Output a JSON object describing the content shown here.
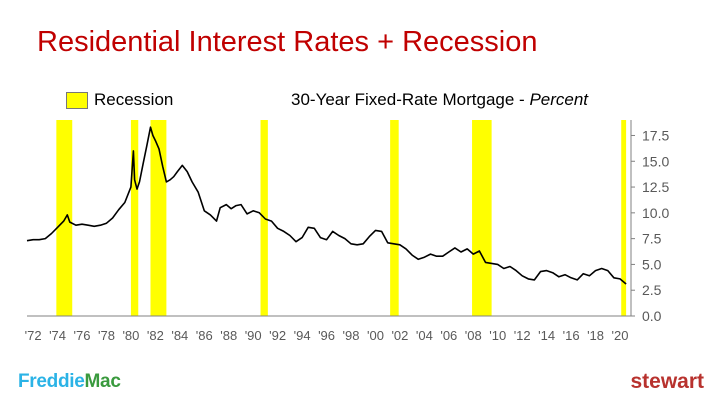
{
  "slide": {
    "title": "Residential Interest Rates + Recession"
  },
  "legend": {
    "label": "Recession",
    "color": "#ffff00"
  },
  "subtitle": {
    "main": "30-Year Fixed-Rate Mortgage - ",
    "italic": "Percent"
  },
  "brands": {
    "left_part1": "Freddie",
    "left_part2": "Mac",
    "right": "stewart"
  },
  "colors": {
    "title": "#c00000",
    "line": "#000000",
    "recession": "#ffff00"
  },
  "chart_data": {
    "type": "line",
    "xlim": [
      1971.5,
      2020.9
    ],
    "ylim": [
      0,
      19
    ],
    "x_ticks": [
      1972,
      1974,
      1976,
      1978,
      1980,
      1982,
      1984,
      1986,
      1988,
      1990,
      1992,
      1994,
      1996,
      1998,
      2000,
      2002,
      2004,
      2006,
      2008,
      2010,
      2012,
      2014,
      2016,
      2018,
      2020
    ],
    "x_tick_labels": [
      "'72",
      "'74",
      "'76",
      "'78",
      "'80",
      "'82",
      "'84",
      "'86",
      "'88",
      "'90",
      "'92",
      "'94",
      "'96",
      "'98",
      "'00",
      "'02",
      "'04",
      "'06",
      "'08",
      "'10",
      "'12",
      "'14",
      "'16",
      "'18",
      "'20"
    ],
    "y_ticks": [
      0,
      2.5,
      5,
      7.5,
      10,
      12.5,
      15,
      17.5
    ],
    "y_tick_labels": [
      "0.0",
      "2.5",
      "5.0",
      "7.5",
      "10.0",
      "12.5",
      "15.0",
      "17.5"
    ],
    "recessions": [
      [
        1973.9,
        1975.2
      ],
      [
        1980.0,
        1980.6
      ],
      [
        1981.6,
        1982.9
      ],
      [
        1990.6,
        1991.2
      ],
      [
        2001.2,
        2001.9
      ],
      [
        2007.9,
        2009.5
      ],
      [
        2020.1,
        2020.5
      ]
    ],
    "series": [
      {
        "x": [
          1971.5,
          1972.0,
          1972.5,
          1973.0,
          1973.5,
          1974.0,
          1974.5,
          1974.8,
          1975.0,
          1975.5,
          1976.0,
          1976.5,
          1977.0,
          1977.5,
          1978.0,
          1978.5,
          1979.0,
          1979.5,
          1980.0,
          1980.2,
          1980.3,
          1980.5,
          1980.7,
          1981.0,
          1981.3,
          1981.6,
          1981.8,
          1982.0,
          1982.3,
          1982.6,
          1982.9,
          1983.2,
          1983.5,
          1983.8,
          1984.2,
          1984.6,
          1985.0,
          1985.5,
          1986.0,
          1986.5,
          1987.0,
          1987.3,
          1987.8,
          1988.2,
          1988.6,
          1989.0,
          1989.5,
          1990.0,
          1990.5,
          1991.0,
          1991.5,
          1992.0,
          1992.5,
          1993.0,
          1993.5,
          1994.0,
          1994.5,
          1995.0,
          1995.5,
          1996.0,
          1996.5,
          1997.0,
          1997.5,
          1998.0,
          1998.5,
          1999.0,
          1999.5,
          2000.0,
          2000.5,
          2001.0,
          2001.5,
          2002.0,
          2002.5,
          2003.0,
          2003.5,
          2004.0,
          2004.5,
          2005.0,
          2005.5,
          2006.0,
          2006.5,
          2007.0,
          2007.5,
          2008.0,
          2008.5,
          2009.0,
          2009.5,
          2010.0,
          2010.5,
          2011.0,
          2011.5,
          2012.0,
          2012.5,
          2013.0,
          2013.5,
          2014.0,
          2014.5,
          2015.0,
          2015.5,
          2016.0,
          2016.5,
          2017.0,
          2017.5,
          2018.0,
          2018.5,
          2019.0,
          2019.5,
          2020.0,
          2020.5
        ],
        "values": [
          7.3,
          7.4,
          7.4,
          7.5,
          8.0,
          8.6,
          9.2,
          9.8,
          9.1,
          8.8,
          8.9,
          8.8,
          8.7,
          8.8,
          9.0,
          9.5,
          10.3,
          11.0,
          12.5,
          16.0,
          13.2,
          12.3,
          13.0,
          14.8,
          16.5,
          18.3,
          17.5,
          17.0,
          16.2,
          14.5,
          13.0,
          13.2,
          13.5,
          14.0,
          14.6,
          14.0,
          13.0,
          12.0,
          10.2,
          9.8,
          9.2,
          10.5,
          10.8,
          10.4,
          10.7,
          10.8,
          9.9,
          10.2,
          10.0,
          9.4,
          9.2,
          8.5,
          8.2,
          7.8,
          7.2,
          7.6,
          8.6,
          8.5,
          7.6,
          7.4,
          8.2,
          7.8,
          7.5,
          7.0,
          6.9,
          7.0,
          7.7,
          8.3,
          8.2,
          7.1,
          7.0,
          6.9,
          6.5,
          5.9,
          5.5,
          5.7,
          6.0,
          5.8,
          5.8,
          6.2,
          6.6,
          6.2,
          6.5,
          6.0,
          6.3,
          5.2,
          5.1,
          5.0,
          4.6,
          4.8,
          4.4,
          3.9,
          3.6,
          3.5,
          4.3,
          4.4,
          4.2,
          3.8,
          4.0,
          3.7,
          3.5,
          4.1,
          3.9,
          4.4,
          4.6,
          4.4,
          3.7,
          3.6,
          3.1
        ]
      }
    ]
  }
}
